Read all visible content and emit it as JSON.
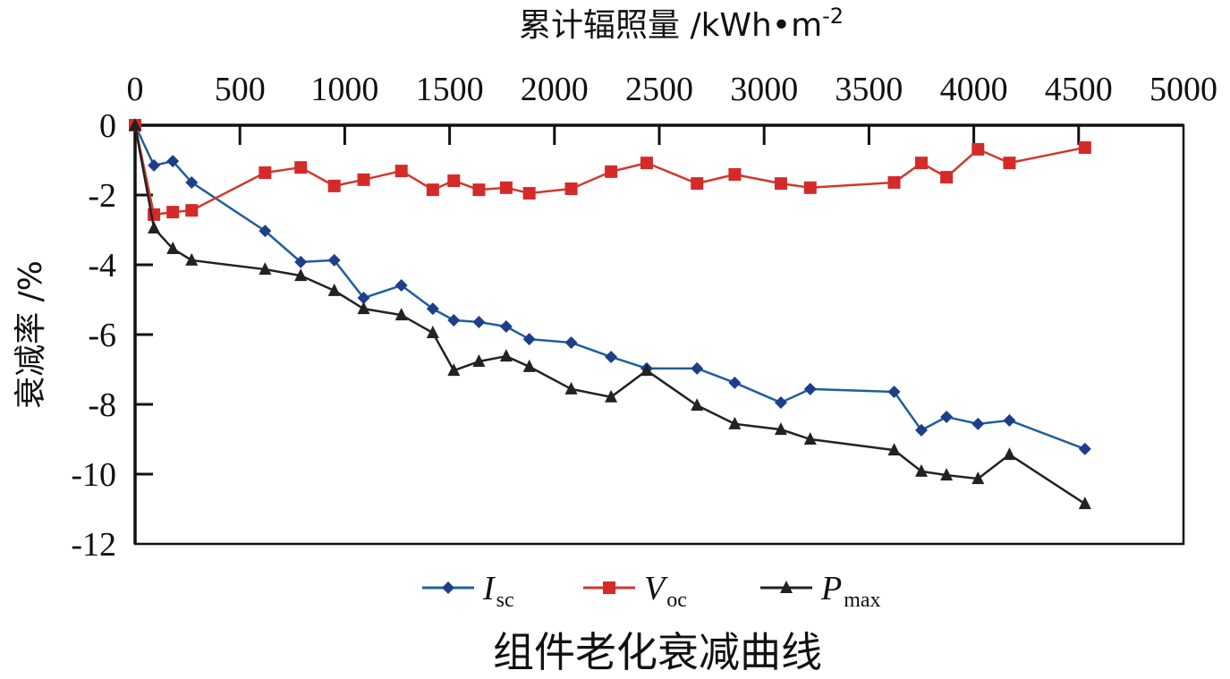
{
  "chart_data": {
    "type": "line",
    "caption": "组件老化衰减曲线",
    "xlabel": "累计辐照量 /kWh•m",
    "xlabel_superscript": "-2",
    "ylabel": "衰减率 /%",
    "xlim": [
      0,
      5000
    ],
    "ylim": [
      -12,
      0
    ],
    "x_ticks": [
      "0",
      "500",
      "1000",
      "1500",
      "2000",
      "2500",
      "3000",
      "3500",
      "4000",
      "4500",
      "5000"
    ],
    "y_ticks": [
      "0",
      "-2",
      "-4",
      "-6",
      "-8",
      "-10",
      "-12"
    ],
    "x_axis_position": "top",
    "grid": false,
    "legend_position": "bottom",
    "x": [
      0,
      90,
      180,
      270,
      620,
      790,
      950,
      1090,
      1270,
      1420,
      1520,
      1640,
      1770,
      1880,
      2080,
      2270,
      2440,
      2680,
      2860,
      3080,
      3220,
      3620,
      3750,
      3870,
      4020,
      4170,
      4530
    ],
    "series": [
      {
        "symbol": "I",
        "subscript": "sc",
        "color": "#1f5f9a",
        "marker_color": "#1d3f8a",
        "marker": "diamond",
        "values": [
          0,
          -1.15,
          -1.03,
          -1.64,
          -3.03,
          -3.92,
          -3.87,
          -4.95,
          -4.59,
          -5.26,
          -5.59,
          -5.64,
          -5.77,
          -6.13,
          -6.23,
          -6.64,
          -6.97,
          -6.97,
          -7.38,
          -7.95,
          -7.56,
          -7.64,
          -8.74,
          -8.36,
          -8.56,
          -8.46,
          -9.28
        ]
      },
      {
        "symbol": "V",
        "subscript": "oc",
        "color": "#d0392b",
        "marker_color": "#d42a2a",
        "marker": "square",
        "values": [
          0,
          -2.56,
          -2.49,
          -2.44,
          -1.36,
          -1.21,
          -1.74,
          -1.56,
          -1.31,
          -1.85,
          -1.59,
          -1.85,
          -1.79,
          -1.95,
          -1.82,
          -1.33,
          -1.08,
          -1.67,
          -1.41,
          -1.67,
          -1.79,
          -1.64,
          -1.08,
          -1.49,
          -0.69,
          -1.08,
          -0.64
        ]
      },
      {
        "symbol": "P",
        "subscript": "max",
        "color": "#222222",
        "marker_color": "#222222",
        "marker": "triangle",
        "values": [
          0,
          -2.95,
          -3.54,
          -3.87,
          -4.13,
          -4.31,
          -4.74,
          -5.26,
          -5.44,
          -5.95,
          -7.03,
          -6.77,
          -6.62,
          -6.92,
          -7.56,
          -7.79,
          -7.03,
          -8.03,
          -8.56,
          -8.72,
          -9.0,
          -9.31,
          -9.92,
          -10.03,
          -10.13,
          -9.44,
          -10.85
        ]
      }
    ]
  }
}
